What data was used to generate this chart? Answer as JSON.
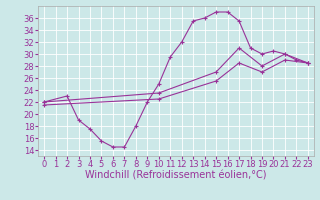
{
  "background_color": "#cce8e8",
  "grid_color": "#ffffff",
  "line_color": "#993399",
  "xlim": [
    -0.5,
    23.5
  ],
  "ylim": [
    13,
    38
  ],
  "yticks": [
    14,
    16,
    18,
    20,
    22,
    24,
    26,
    28,
    30,
    32,
    34,
    36
  ],
  "xticks": [
    0,
    1,
    2,
    3,
    4,
    5,
    6,
    7,
    8,
    9,
    10,
    11,
    12,
    13,
    14,
    15,
    16,
    17,
    18,
    19,
    20,
    21,
    22,
    23
  ],
  "line1_x": [
    0,
    2,
    3,
    4,
    5,
    6,
    7,
    8,
    9,
    10,
    11,
    12,
    13,
    14,
    15,
    16,
    17,
    18,
    19,
    20,
    21,
    22,
    23
  ],
  "line1_y": [
    22,
    23,
    19,
    17.5,
    15.5,
    14.5,
    14.5,
    18,
    22,
    25,
    29.5,
    32,
    35.5,
    36,
    37,
    37,
    35.5,
    31,
    30,
    30.5,
    30,
    29,
    28.5
  ],
  "line2_x": [
    0,
    10,
    15,
    17,
    19,
    21,
    23
  ],
  "line2_y": [
    22,
    23.5,
    27,
    31,
    28,
    30,
    28.5
  ],
  "line3_x": [
    0,
    10,
    15,
    17,
    19,
    21,
    23
  ],
  "line3_y": [
    21.5,
    22.5,
    25.5,
    28.5,
    27,
    29,
    28.5
  ],
  "xlabel": "Windchill (Refroidissement éolien,°C)",
  "xlabel_fontsize": 7,
  "tick_fontsize": 6,
  "marker_size": 3,
  "linewidth": 0.8
}
